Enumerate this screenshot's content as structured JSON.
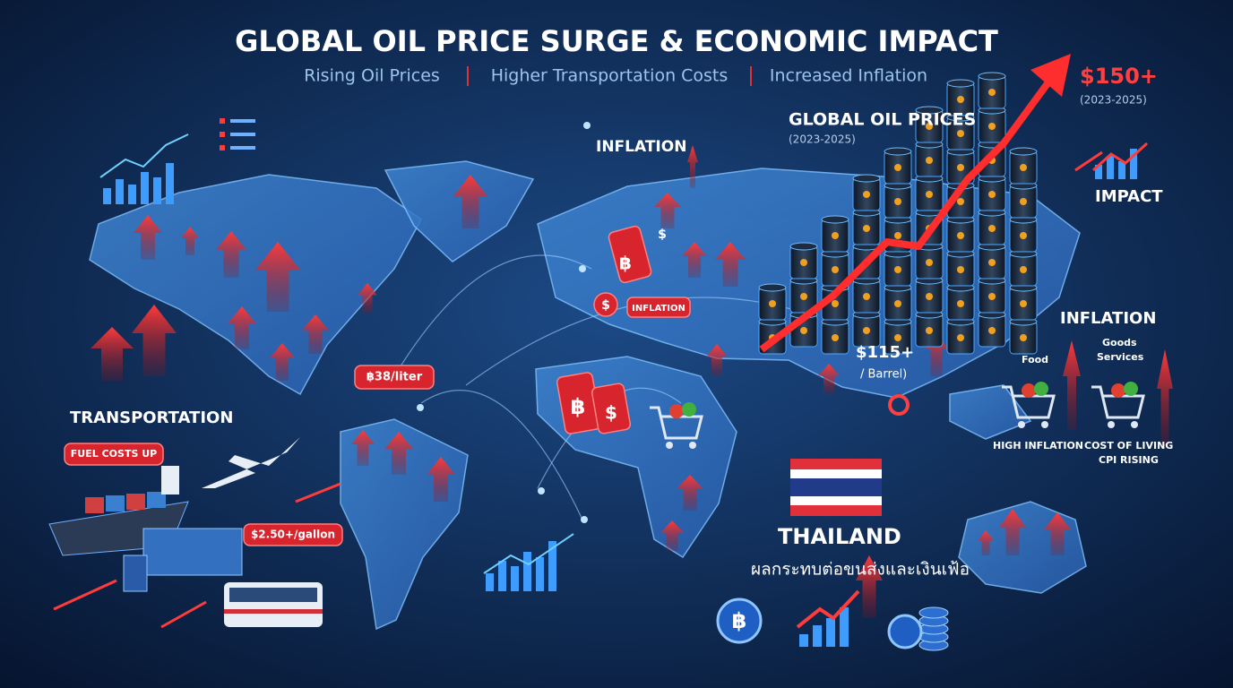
{
  "header": {
    "title": "GLOBAL OIL PRICE SURGE & ECONOMIC IMPACT",
    "subtitle": [
      "Rising Oil Prices",
      "Higher Transportation Costs",
      "Increased Inflation"
    ]
  },
  "oil": {
    "label": "GLOBAL OIL PRICES",
    "period": "(2023-2025)",
    "peak": "$150+",
    "peak_period": "(2023-2025)",
    "impact": "IMPACT",
    "mid": "$115+",
    "mid_unit": "/ Barrel)"
  },
  "inflation": {
    "top": "INFLATION",
    "tag": "INFLATION",
    "right": "INFLATION",
    "food": "Food",
    "goods": "Goods",
    "services": "Services",
    "high": "HIGH INFLATION",
    "cost": "COST OF LIVING",
    "cpi": "CPI RISING"
  },
  "transport": {
    "label": "TRANSPORTATION",
    "fuel": "FUEL COSTS UP",
    "gallon": "$2.50+/gallon",
    "liter": "฿38/liter"
  },
  "thailand": {
    "label": "THAILAND",
    "thai": "ผลกระทบต่อขนส่งและเงินเฟ้อ"
  },
  "symbols": {
    "baht": "฿",
    "dollar": "$"
  }
}
